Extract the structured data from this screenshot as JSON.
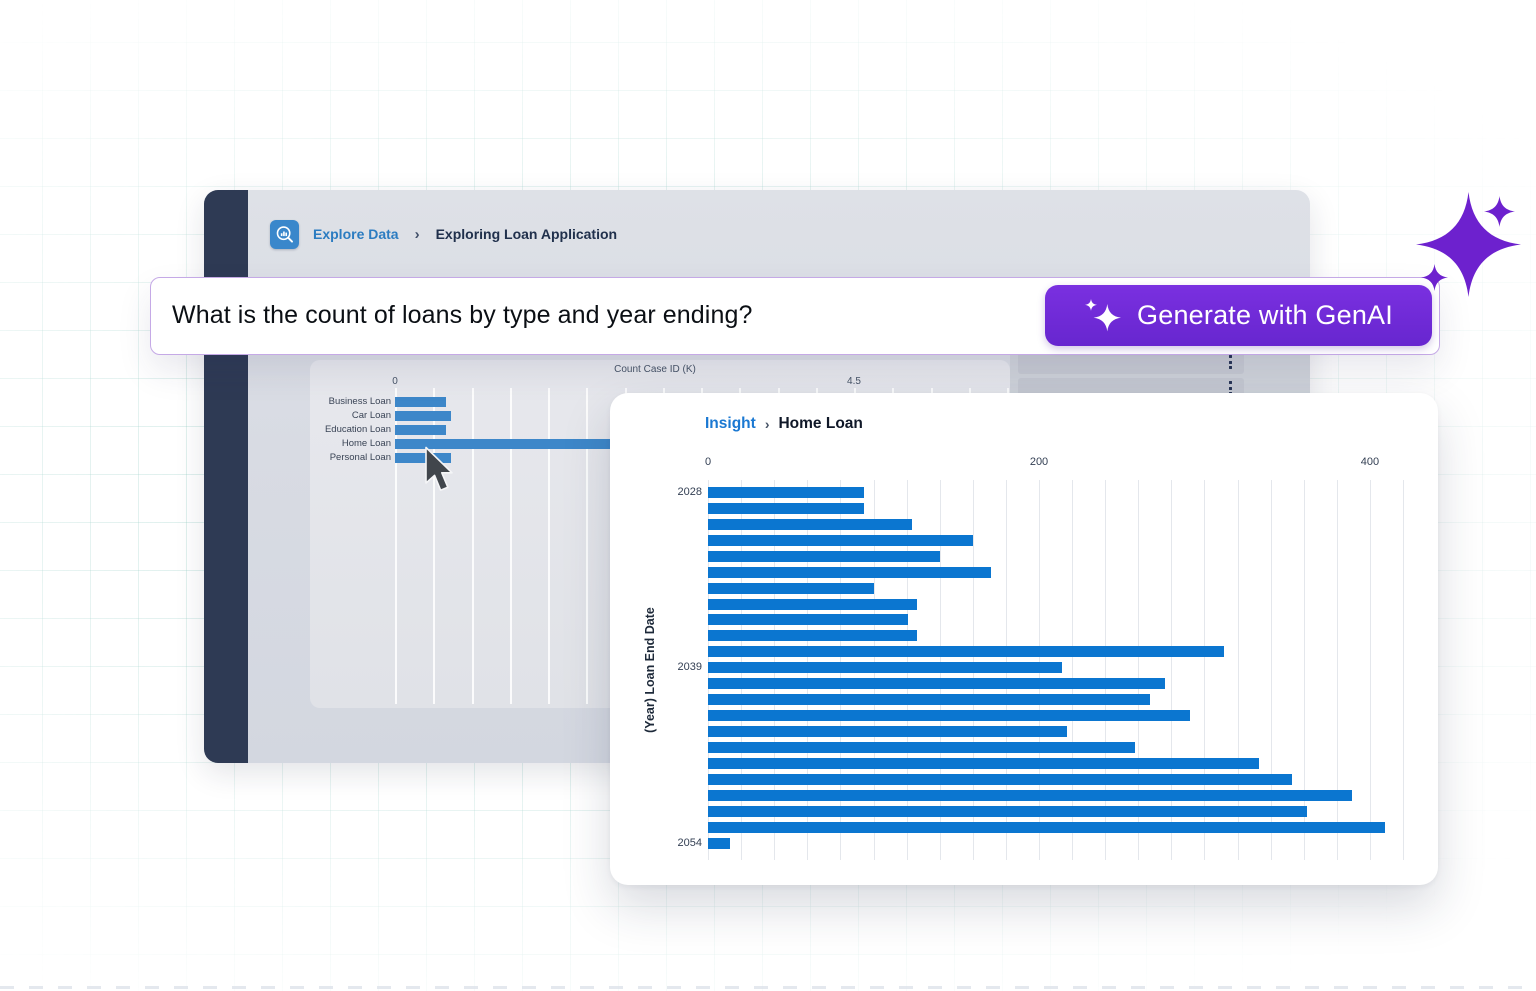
{
  "decor": {
    "sparkle_color": "#6d21ce",
    "grid_color": "#7ac1b7"
  },
  "explorer_window": {
    "breadcrumb": {
      "icon_name": "explore-chart-magnifier-icon",
      "link_label": "Explore Data",
      "separator": "›",
      "current_label": "Exploring Loan Application"
    },
    "side_list": {
      "rows": [
        {
          "menu_icon": "kebab-menu-icon"
        },
        {
          "menu_icon": "kebab-menu-icon"
        }
      ]
    }
  },
  "query_bar": {
    "question": "What is the count of loans by type and year ending?",
    "generate_button": {
      "icon_name": "genai-sparkle-icon",
      "label": "Generate with GenAI",
      "background": "#6d28d9",
      "text_color": "#ffffff"
    }
  },
  "insight_panel": {
    "breadcrumb": {
      "link_label": "Insight",
      "separator": "›",
      "current_label": "Home Loan"
    }
  },
  "cursor": {
    "name": "mouse-pointer",
    "hover_target": "Home Loan bar"
  },
  "chart_data": [
    {
      "id": "loan-type-count-chart",
      "type": "bar",
      "orientation": "horizontal",
      "xlabel": "Count Case ID (K)",
      "x_ticks": [
        {
          "value": 0,
          "label": "0"
        },
        {
          "value": 4.5,
          "label": "4.5"
        }
      ],
      "xlim": [
        0,
        6
      ],
      "gridline_step": 0.375,
      "grid": true,
      "categories": [
        "Business Loan",
        "Car Loan",
        "Education Loan",
        "Home Loan",
        "Personal Loan"
      ],
      "values": [
        0.5,
        0.55,
        0.5,
        4.9,
        0.55
      ],
      "highlighted_category": "Home Loan",
      "note": "Home Loan bar runs under the Insight panel; its end is not visible, value estimated from Insight chart total",
      "bar_color": "#3d87c9"
    },
    {
      "id": "home-loan-end-year-chart",
      "type": "bar",
      "orientation": "horizontal",
      "title_breadcrumb": "Insight › Home Loan",
      "ylabel": "(Year) Loan End Date",
      "x_ticks": [
        {
          "value": 0,
          "label": "0"
        },
        {
          "value": 200,
          "label": "200"
        },
        {
          "value": 400,
          "label": "400"
        }
      ],
      "xlim": [
        0,
        420
      ],
      "gridline_step": 20,
      "grid": true,
      "rows": [
        {
          "label": "2028",
          "value": 94
        },
        {
          "label": "",
          "value": 94
        },
        {
          "label": "",
          "value": 123
        },
        {
          "label": "",
          "value": 160
        },
        {
          "label": "",
          "value": 140
        },
        {
          "label": "",
          "value": 171
        },
        {
          "label": "",
          "value": 100
        },
        {
          "label": "",
          "value": 126
        },
        {
          "label": "",
          "value": 121
        },
        {
          "label": "",
          "value": 126
        },
        {
          "label": "",
          "value": 312
        },
        {
          "label": "2039",
          "value": 214
        },
        {
          "label": "",
          "value": 276
        },
        {
          "label": "",
          "value": 267
        },
        {
          "label": "",
          "value": 291
        },
        {
          "label": "",
          "value": 217
        },
        {
          "label": "",
          "value": 258
        },
        {
          "label": "",
          "value": 333
        },
        {
          "label": "",
          "value": 353
        },
        {
          "label": "",
          "value": 389
        },
        {
          "label": "",
          "value": 362
        },
        {
          "label": "",
          "value": 409
        },
        {
          "label": "2054",
          "value": 13
        }
      ],
      "bar_color": "#0b76d0"
    }
  ]
}
